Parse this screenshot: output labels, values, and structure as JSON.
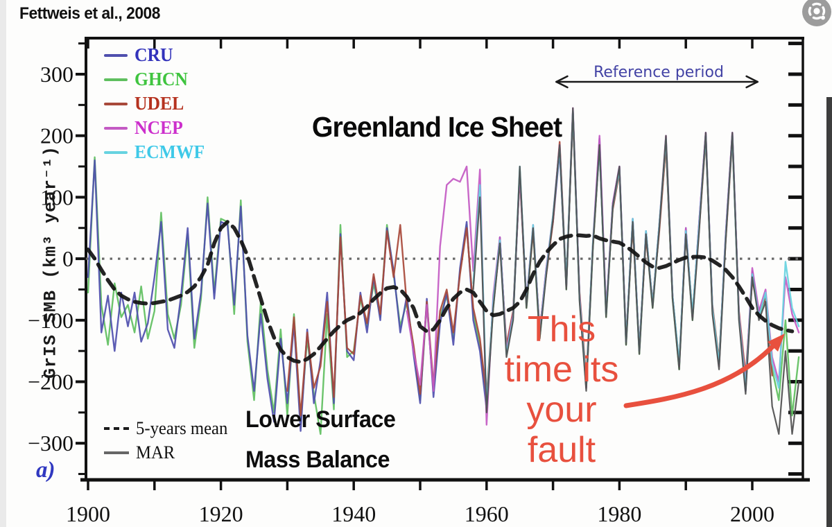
{
  "source_label": "Fettweis et al., 2008",
  "annotation": {
    "lines": [
      "This",
      "time its",
      "your",
      "fault"
    ],
    "color": "#e8503e"
  },
  "lens_button": {
    "icon": "lens-icon",
    "background": "#9c9c9c"
  },
  "chart_data": {
    "type": "line",
    "title": "Greenland Ice Sheet",
    "subtitle_lines": [
      "Lower Surface",
      "Mass Balance"
    ],
    "panel_label": "a)",
    "ylabel": "GrIS SMB (km³ year⁻¹)",
    "xlabel": "",
    "xlim": [
      1900,
      2007.5
    ],
    "ylim": [
      -350,
      350
    ],
    "x_ticks": [
      1900,
      1910,
      1920,
      1930,
      1940,
      1950,
      1960,
      1970,
      1980,
      1990,
      2000
    ],
    "x_tick_labels": [
      1900,
      1920,
      1940,
      1960,
      1980,
      2000
    ],
    "y_ticks": [
      300,
      200,
      100,
      0,
      -100,
      -200,
      -300
    ],
    "y_minor_step": 50,
    "grid": "off",
    "zero_line": {
      "value": 0,
      "style": "dotted",
      "color": "#6a6a6a"
    },
    "reference_period": {
      "label": "Reference period",
      "start_year": 1970.5,
      "end_year": 2000.8,
      "label_color": "#4343a5",
      "arrow_color": "#1a1a1a"
    },
    "legend": [
      {
        "label": "CRU",
        "color": "#3333bb",
        "line_color": "#4f4fae"
      },
      {
        "label": "GHCN",
        "color": "#3fc43f",
        "line_color": "#5fbf5f"
      },
      {
        "label": "UDEL",
        "color": "#b5321f",
        "line_color": "#a8493a"
      },
      {
        "label": "NCEP",
        "color": "#cc2fcc",
        "line_color": "#c35ac3"
      },
      {
        "label": "ECMWF",
        "color": "#3fc9e8",
        "line_color": "#67d3e0"
      }
    ],
    "legend2": [
      {
        "label": "5-years mean",
        "style": "dashed",
        "color": "#1a1a1a"
      },
      {
        "label": "MAR",
        "style": "solid",
        "color": "#666666"
      }
    ],
    "series": [
      {
        "name": "GHCN",
        "start": 1900,
        "color": "#5fbf5f",
        "width": 2.4,
        "values": [
          -55,
          165,
          -75,
          -140,
          -40,
          -95,
          -75,
          -120,
          -45,
          -130,
          -85,
          75,
          -90,
          -130,
          -75,
          40,
          -145,
          -65,
          100,
          -55,
          65,
          60,
          -90,
          95,
          -135,
          -230,
          -70,
          -180,
          -250,
          -115,
          -255,
          -90,
          -265,
          -130,
          -220,
          -285,
          -90,
          -245,
          55,
          -160,
          -150,
          -65,
          -110,
          -40,
          -95,
          55,
          -25,
          -110,
          -70,
          -145,
          -230,
          -75,
          -215,
          -95,
          -60,
          -130,
          -20,
          55,
          -90,
          -140,
          -235,
          -80,
          30,
          -145,
          -90,
          145,
          -80,
          45,
          -130,
          -20,
          65,
          180,
          -50,
          240,
          -65,
          -210,
          15,
          185,
          -95,
          85,
          145,
          -140,
          60,
          -155,
          40,
          -80,
          50,
          185,
          -65,
          -180,
          45,
          -100,
          55,
          200,
          -85,
          -175,
          35,
          200,
          -95,
          -200,
          -30,
          -95,
          -60,
          -180,
          -230,
          -100,
          -255,
          -160
        ]
      },
      {
        "name": "CRU",
        "start": 1900,
        "color": "#4f4fae",
        "width": 2.4,
        "values": [
          -30,
          160,
          -120,
          -60,
          -150,
          -55,
          -110,
          -55,
          -135,
          -105,
          -30,
          60,
          -115,
          -145,
          -60,
          50,
          -130,
          -55,
          90,
          -65,
          60,
          55,
          -75,
          85,
          -125,
          -215,
          -90,
          -195,
          -265,
          -130,
          -235,
          -105,
          -280,
          -115,
          -235,
          -165,
          -55,
          -235,
          40,
          -150,
          -165,
          -55,
          -120,
          -30,
          -100,
          50,
          -20,
          -120,
          -60,
          -155,
          -235,
          -65,
          -225,
          -105,
          -55,
          -140,
          -15,
          60,
          -100,
          -150,
          -245,
          -70,
          35,
          -150,
          -95,
          140,
          -70,
          50,
          -120,
          -15,
          60,
          175,
          -45,
          240,
          -60,
          -205,
          20,
          195,
          -90,
          90,
          150,
          -135,
          65,
          -150,
          45,
          -75,
          55,
          190,
          -60,
          -175,
          50,
          -95,
          60,
          205,
          -80,
          -170,
          40,
          205,
          -90,
          -215,
          -20,
          -90
        ]
      },
      {
        "name": "UDEL",
        "start": 1930,
        "color": "#a8493a",
        "width": 2.4,
        "values": [
          -215,
          -95,
          -255,
          -120,
          -210,
          -175,
          -70,
          -225,
          35,
          -145,
          -155,
          -60,
          -105,
          -25,
          -90,
          45,
          -30,
          55,
          -75,
          -140,
          -220,
          -70,
          -205,
          -85,
          -50,
          -120,
          -25,
          50,
          -80,
          -130,
          -225,
          -75,
          25,
          -140,
          -85,
          135,
          -75,
          45,
          -115,
          -25,
          60,
          190,
          -40,
          230,
          -55,
          -195,
          20,
          180,
          -85,
          80,
          140,
          -130,
          55,
          -145,
          35,
          -70,
          45,
          185,
          -60,
          -170,
          40,
          -90,
          50,
          195,
          -75,
          -165,
          30,
          195,
          -85,
          -190,
          -35,
          -85,
          -65,
          -190
        ]
      },
      {
        "name": "NCEP",
        "start": 1948,
        "color": "#c35ac3",
        "width": 2.4,
        "values": [
          -85,
          -150,
          -205,
          -75,
          -215,
          20,
          120,
          130,
          125,
          150,
          -20,
          145,
          -270,
          -60,
          35,
          -150,
          -90,
          140,
          -70,
          55,
          -120,
          -15,
          70,
          185,
          -45,
          245,
          -60,
          -210,
          25,
          200,
          -85,
          90,
          150,
          -135,
          65,
          -150,
          45,
          -75,
          55,
          200,
          -60,
          -175,
          50,
          -95,
          60,
          205,
          -80,
          -175,
          40,
          205,
          -90,
          -205,
          -15,
          -85,
          -50,
          -160,
          -200,
          -30,
          -90,
          -120
        ]
      },
      {
        "name": "ECMWF",
        "start": 1958,
        "color": "#67d3e0",
        "width": 2.4,
        "values": [
          -40,
          120,
          -240,
          -70,
          30,
          -155,
          -95,
          150,
          -75,
          55,
          -125,
          -20,
          70,
          180,
          -40,
          240,
          -65,
          -205,
          25,
          180,
          -90,
          85,
          145,
          -135,
          65,
          -150,
          45,
          -75,
          55,
          195,
          -60,
          -170,
          45,
          -90,
          55,
          200,
          -80,
          -170,
          35,
          200,
          -95,
          -210,
          -25,
          -95,
          -55,
          -170,
          -210,
          -5,
          -80,
          -110
        ]
      },
      {
        "name": "MAR",
        "start": 1958,
        "color": "#4f4f4f",
        "width": 2.2,
        "values": [
          -50,
          100,
          -250,
          -80,
          25,
          -160,
          -100,
          150,
          -80,
          50,
          -130,
          -25,
          65,
          185,
          -50,
          245,
          -70,
          -215,
          20,
          185,
          -95,
          85,
          150,
          -140,
          60,
          -155,
          40,
          -80,
          50,
          200,
          -65,
          -180,
          40,
          -100,
          45,
          205,
          -90,
          -180,
          30,
          205,
          -100,
          -220,
          -30,
          -100,
          -70,
          -240,
          -285,
          -150,
          -285,
          -200
        ]
      }
    ],
    "mean5": {
      "name": "5-years mean",
      "start": 1900,
      "color": "#111111",
      "dash": true,
      "values": [
        15,
        0,
        -18,
        -35,
        -50,
        -60,
        -66,
        -70,
        -72,
        -73,
        -72,
        -70,
        -68,
        -64,
        -60,
        -54,
        -45,
        -30,
        -10,
        25,
        50,
        60,
        50,
        30,
        5,
        -30,
        -65,
        -100,
        -128,
        -148,
        -160,
        -166,
        -168,
        -163,
        -155,
        -143,
        -130,
        -118,
        -108,
        -100,
        -95,
        -88,
        -78,
        -66,
        -56,
        -48,
        -46,
        -50,
        -62,
        -80,
        -110,
        -118,
        -115,
        -100,
        -80,
        -65,
        -55,
        -50,
        -55,
        -70,
        -85,
        -92,
        -90,
        -85,
        -80,
        -70,
        -50,
        -25,
        -5,
        10,
        22,
        32,
        36,
        38,
        38,
        37,
        38,
        33,
        30,
        28,
        26,
        20,
        12,
        3,
        -6,
        -13,
        -15,
        -12,
        -7,
        -2,
        2,
        3,
        3,
        2,
        -3,
        -10,
        -18,
        -30,
        -45,
        -62,
        -80,
        -92,
        -101,
        -108,
        -113,
        -116,
        -118
      ]
    }
  }
}
